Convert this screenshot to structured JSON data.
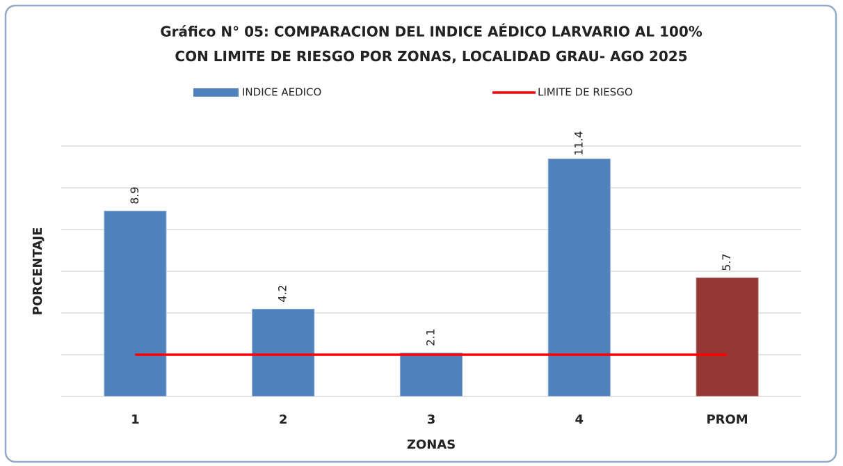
{
  "chart_data": {
    "type": "bar",
    "title": [
      "Gráfico N° 05: COMPARACION DEL  INDICE AÉDICO LARVARIO AL 100%",
      "CON LIMITE DE RIESGO POR ZONAS, LOCALIDAD GRAU-",
      "AGO 2025"
    ],
    "x_label": "ZONAS",
    "y_label": "PORCENTAJE",
    "categories": [
      "1",
      "2",
      "3",
      "4",
      "PROM"
    ],
    "series": [
      {
        "name": "INDICE AEDICO",
        "type": "bar",
        "color": "#4f81bd",
        "colors": [
          "#4f81bd",
          "#4f81bd",
          "#4f81bd",
          "#4f81bd",
          "#943634"
        ],
        "values": [
          8.9,
          4.2,
          2.1,
          11.4,
          5.7
        ]
      },
      {
        "name": "LIMITE DE RIESGO",
        "type": "line",
        "color": "#ff0000",
        "values": [
          2,
          2,
          2,
          2,
          2
        ]
      }
    ],
    "ylim": [
      0,
      12
    ],
    "yticks": [
      0,
      2,
      4,
      6,
      8,
      10,
      12
    ],
    "grid": true,
    "legend": "top"
  }
}
